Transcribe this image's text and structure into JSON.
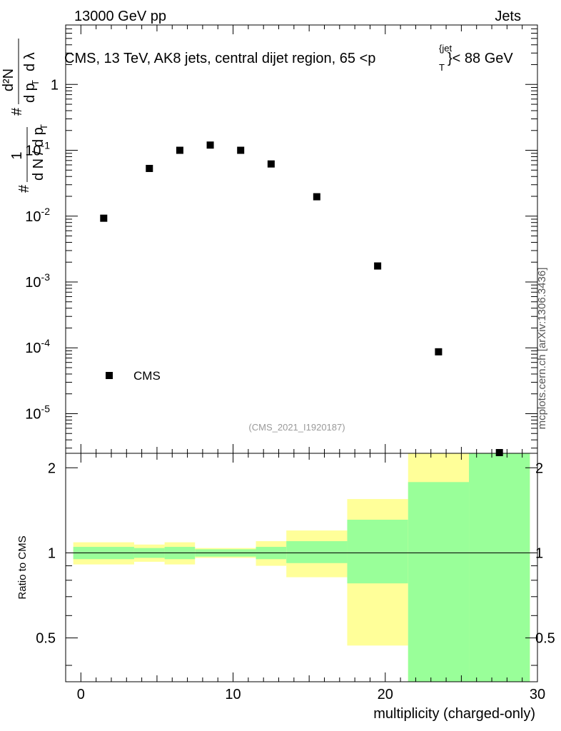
{
  "header": {
    "energy": "13000 GeV pp",
    "process": "Jets"
  },
  "watermark": "mcplots.cern.ch [arXiv:1306.3436]",
  "main_panel": {
    "title": "CMS, 13 TeV, AK8 jets, central dijet region, 65 <p",
    "title_sup": "{jet",
    "title_sub": "T",
    "title_tail": "}< 88 GeV",
    "ylabel": {
      "hash": "#",
      "one": "1",
      "dN": "d N",
      "slash": "/",
      "dp": "d p",
      "sub_T": "T",
      "hash2": "#",
      "d2N": "d²N",
      "dpdl": "d p",
      "sub_T2": "T",
      "dl": "d λ"
    },
    "legend_label": "CMS",
    "analysis_id": "(CMS_2021_I1920187)"
  },
  "ratio_panel": {
    "ylabel": "Ratio to CMS",
    "xlabel": "multiplicity (charged-only)"
  },
  "chart_data": {
    "type": "scatter",
    "title": "CMS, 13 TeV, AK8 jets, central dijet region, 65 < pT(jet) < 88 GeV",
    "xlabel": "multiplicity (charged-only)",
    "ylabel": "1/dN/dpT d2N/dpT dλ",
    "xlim": [
      -1,
      30
    ],
    "ylim": [
      2.5e-06,
      8
    ],
    "yscale": "log",
    "xticks": [
      0,
      10,
      20,
      30
    ],
    "yticks_main": [
      "10^-5",
      "10^-4",
      "10^-3",
      "10^-2",
      "10^-1",
      "1"
    ],
    "series": [
      {
        "name": "CMS",
        "x": [
          1.5,
          4.5,
          6.5,
          8.5,
          10.5,
          12.5,
          15.5,
          19.5,
          23.5,
          27.5
        ],
        "values": [
          0.0093,
          0.053,
          0.1,
          0.12,
          0.1,
          0.062,
          0.0197,
          0.00175,
          8.7e-05,
          2.4e-06
        ]
      }
    ],
    "ratio": {
      "ylabel": "Ratio to CMS",
      "ylim": [
        0.35,
        2.25
      ],
      "yticks": [
        "0.5",
        "1",
        "2"
      ],
      "bins": [
        {
          "lo": -0.5,
          "hi": 3.5,
          "green": [
            0.95,
            1.05
          ],
          "yellow": [
            0.91,
            1.09
          ]
        },
        {
          "lo": 3.5,
          "hi": 5.5,
          "green": [
            0.96,
            1.04
          ],
          "yellow": [
            0.93,
            1.07
          ]
        },
        {
          "lo": 5.5,
          "hi": 7.5,
          "green": [
            0.95,
            1.05
          ],
          "yellow": [
            0.91,
            1.09
          ]
        },
        {
          "lo": 7.5,
          "hi": 11.5,
          "green": [
            0.97,
            1.03
          ],
          "yellow": [
            0.96,
            1.04
          ]
        },
        {
          "lo": 11.5,
          "hi": 13.5,
          "green": [
            0.95,
            1.05
          ],
          "yellow": [
            0.9,
            1.1
          ]
        },
        {
          "lo": 13.5,
          "hi": 17.5,
          "green": [
            0.92,
            1.1
          ],
          "yellow": [
            0.82,
            1.2
          ]
        },
        {
          "lo": 17.5,
          "hi": 21.5,
          "green": [
            0.78,
            1.31
          ],
          "yellow": [
            0.47,
            1.55
          ]
        },
        {
          "lo": 21.5,
          "hi": 25.5,
          "green": [
            0.35,
            1.78
          ],
          "yellow": [
            0.35,
            2.25
          ]
        },
        {
          "lo": 25.5,
          "hi": 29.5,
          "green": [
            0.35,
            2.25
          ],
          "yellow": [
            0.35,
            2.25
          ]
        }
      ]
    }
  }
}
